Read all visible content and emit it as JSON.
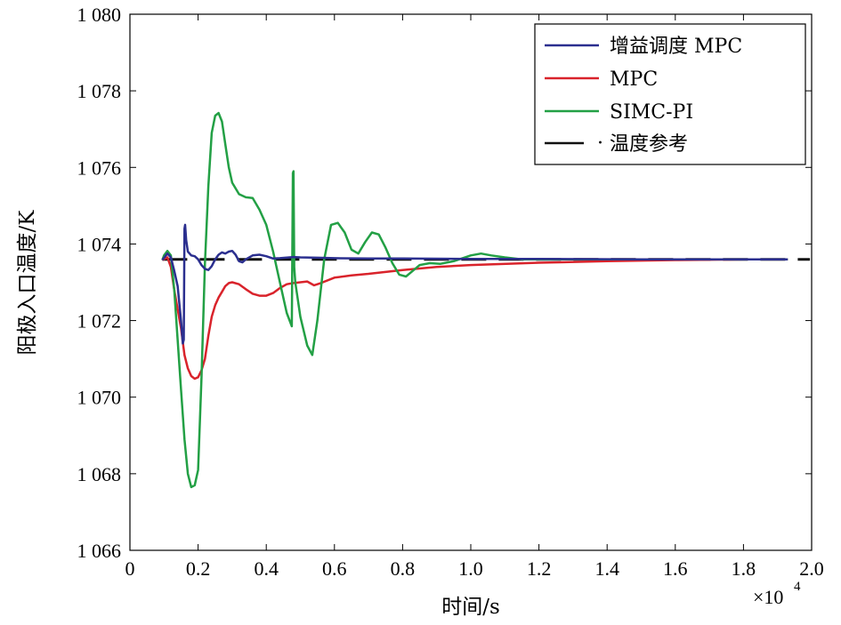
{
  "chart_data": {
    "type": "line",
    "xlabel": "时间/s",
    "ylabel": "阳极入口温度/K",
    "x_multiplier": "×10",
    "x_multiplier_exp": "4",
    "xlim": [
      0,
      2.0
    ],
    "ylim": [
      1066,
      1080
    ],
    "xticks": [
      0,
      0.2,
      0.4,
      0.6,
      0.8,
      1.0,
      1.2,
      1.4,
      1.6,
      1.8,
      2.0
    ],
    "xtick_labels": [
      "0",
      "0.2",
      "0.4",
      "0.6",
      "0.8",
      "1.0",
      "1.2",
      "1.4",
      "1.6",
      "1.8",
      "2.0"
    ],
    "yticks": [
      1066,
      1068,
      1070,
      1072,
      1074,
      1076,
      1078,
      1080
    ],
    "ytick_labels": [
      "1 066",
      "1 068",
      "1 070",
      "1 072",
      "1 074",
      "1 076",
      "1 078",
      "1 080"
    ],
    "legend_position": "top-right",
    "series": [
      {
        "name": "增益调度 MPC",
        "color": "#2b2f8f",
        "dash": "solid",
        "x": [
          0.095,
          0.11,
          0.12,
          0.13,
          0.14,
          0.15,
          0.155,
          0.158,
          0.16,
          0.162,
          0.165,
          0.17,
          0.18,
          0.19,
          0.2,
          0.21,
          0.22,
          0.23,
          0.24,
          0.25,
          0.26,
          0.27,
          0.28,
          0.29,
          0.3,
          0.31,
          0.32,
          0.33,
          0.34,
          0.36,
          0.38,
          0.4,
          0.42,
          0.44,
          0.48,
          0.5,
          0.55,
          0.6,
          0.7,
          0.8,
          1.0,
          1.2,
          1.5,
          1.93
        ],
        "y": [
          1073.58,
          1073.75,
          1073.65,
          1073.3,
          1072.9,
          1072.0,
          1071.4,
          1071.5,
          1074.4,
          1074.5,
          1074.1,
          1073.8,
          1073.7,
          1073.68,
          1073.6,
          1073.45,
          1073.35,
          1073.32,
          1073.42,
          1073.6,
          1073.72,
          1073.78,
          1073.75,
          1073.8,
          1073.82,
          1073.72,
          1073.55,
          1073.52,
          1073.6,
          1073.7,
          1073.72,
          1073.68,
          1073.62,
          1073.63,
          1073.66,
          1073.65,
          1073.64,
          1073.63,
          1073.62,
          1073.62,
          1073.61,
          1073.61,
          1073.6,
          1073.6
        ]
      },
      {
        "name": "MPC",
        "color": "#d9232b",
        "dash": "solid",
        "x": [
          0.095,
          0.11,
          0.12,
          0.13,
          0.14,
          0.15,
          0.16,
          0.17,
          0.18,
          0.19,
          0.2,
          0.21,
          0.22,
          0.23,
          0.24,
          0.25,
          0.26,
          0.27,
          0.28,
          0.29,
          0.3,
          0.32,
          0.34,
          0.36,
          0.38,
          0.4,
          0.42,
          0.44,
          0.46,
          0.48,
          0.5,
          0.52,
          0.54,
          0.56,
          0.6,
          0.65,
          0.7,
          0.8,
          0.9,
          1.0,
          1.2,
          1.4,
          1.6,
          1.8,
          1.93
        ],
        "y": [
          1073.58,
          1073.65,
          1073.4,
          1072.8,
          1072.3,
          1071.8,
          1071.1,
          1070.75,
          1070.55,
          1070.48,
          1070.52,
          1070.7,
          1071.0,
          1071.6,
          1072.1,
          1072.4,
          1072.6,
          1072.75,
          1072.9,
          1072.98,
          1073.0,
          1072.95,
          1072.82,
          1072.7,
          1072.65,
          1072.65,
          1072.72,
          1072.85,
          1072.95,
          1072.98,
          1073.0,
          1073.02,
          1072.92,
          1072.98,
          1073.12,
          1073.18,
          1073.22,
          1073.32,
          1073.4,
          1073.45,
          1073.51,
          1073.55,
          1073.58,
          1073.6,
          1073.6
        ]
      },
      {
        "name": "SIMC-PI",
        "color": "#23a045",
        "dash": "solid",
        "x": [
          0.095,
          0.1,
          0.11,
          0.12,
          0.13,
          0.14,
          0.15,
          0.16,
          0.17,
          0.18,
          0.19,
          0.2,
          0.21,
          0.22,
          0.23,
          0.24,
          0.25,
          0.26,
          0.27,
          0.28,
          0.29,
          0.3,
          0.32,
          0.34,
          0.36,
          0.38,
          0.4,
          0.42,
          0.44,
          0.46,
          0.475,
          0.478,
          0.48,
          0.482,
          0.485,
          0.5,
          0.52,
          0.535,
          0.55,
          0.57,
          0.59,
          0.61,
          0.63,
          0.65,
          0.67,
          0.69,
          0.71,
          0.73,
          0.75,
          0.77,
          0.79,
          0.81,
          0.83,
          0.85,
          0.88,
          0.91,
          0.95,
          1.0,
          1.03,
          1.06,
          1.1,
          1.15,
          1.2,
          1.3,
          1.5,
          1.7,
          1.93
        ],
        "y": [
          1073.58,
          1073.7,
          1073.82,
          1073.7,
          1072.8,
          1071.5,
          1070.2,
          1068.9,
          1068.0,
          1067.65,
          1067.7,
          1068.1,
          1070.5,
          1073.5,
          1075.5,
          1076.9,
          1077.35,
          1077.42,
          1077.2,
          1076.6,
          1076.0,
          1075.6,
          1075.3,
          1075.22,
          1075.2,
          1074.9,
          1074.5,
          1073.8,
          1073.0,
          1072.2,
          1071.85,
          1075.85,
          1075.9,
          1073.4,
          1073.0,
          1072.1,
          1071.35,
          1071.1,
          1072.0,
          1073.6,
          1074.5,
          1074.55,
          1074.3,
          1073.85,
          1073.75,
          1074.05,
          1074.3,
          1074.25,
          1073.9,
          1073.5,
          1073.2,
          1073.15,
          1073.3,
          1073.45,
          1073.5,
          1073.48,
          1073.55,
          1073.7,
          1073.75,
          1073.7,
          1073.65,
          1073.6,
          1073.6,
          1073.6,
          1073.6,
          1073.6,
          1073.6
        ]
      },
      {
        "name": "温度参考",
        "color": "#111111",
        "dash": "dashed",
        "x": [
          0.095,
          1.995
        ],
        "y": [
          1073.6,
          1073.6
        ]
      }
    ],
    "legend_ref_marker": "·"
  }
}
